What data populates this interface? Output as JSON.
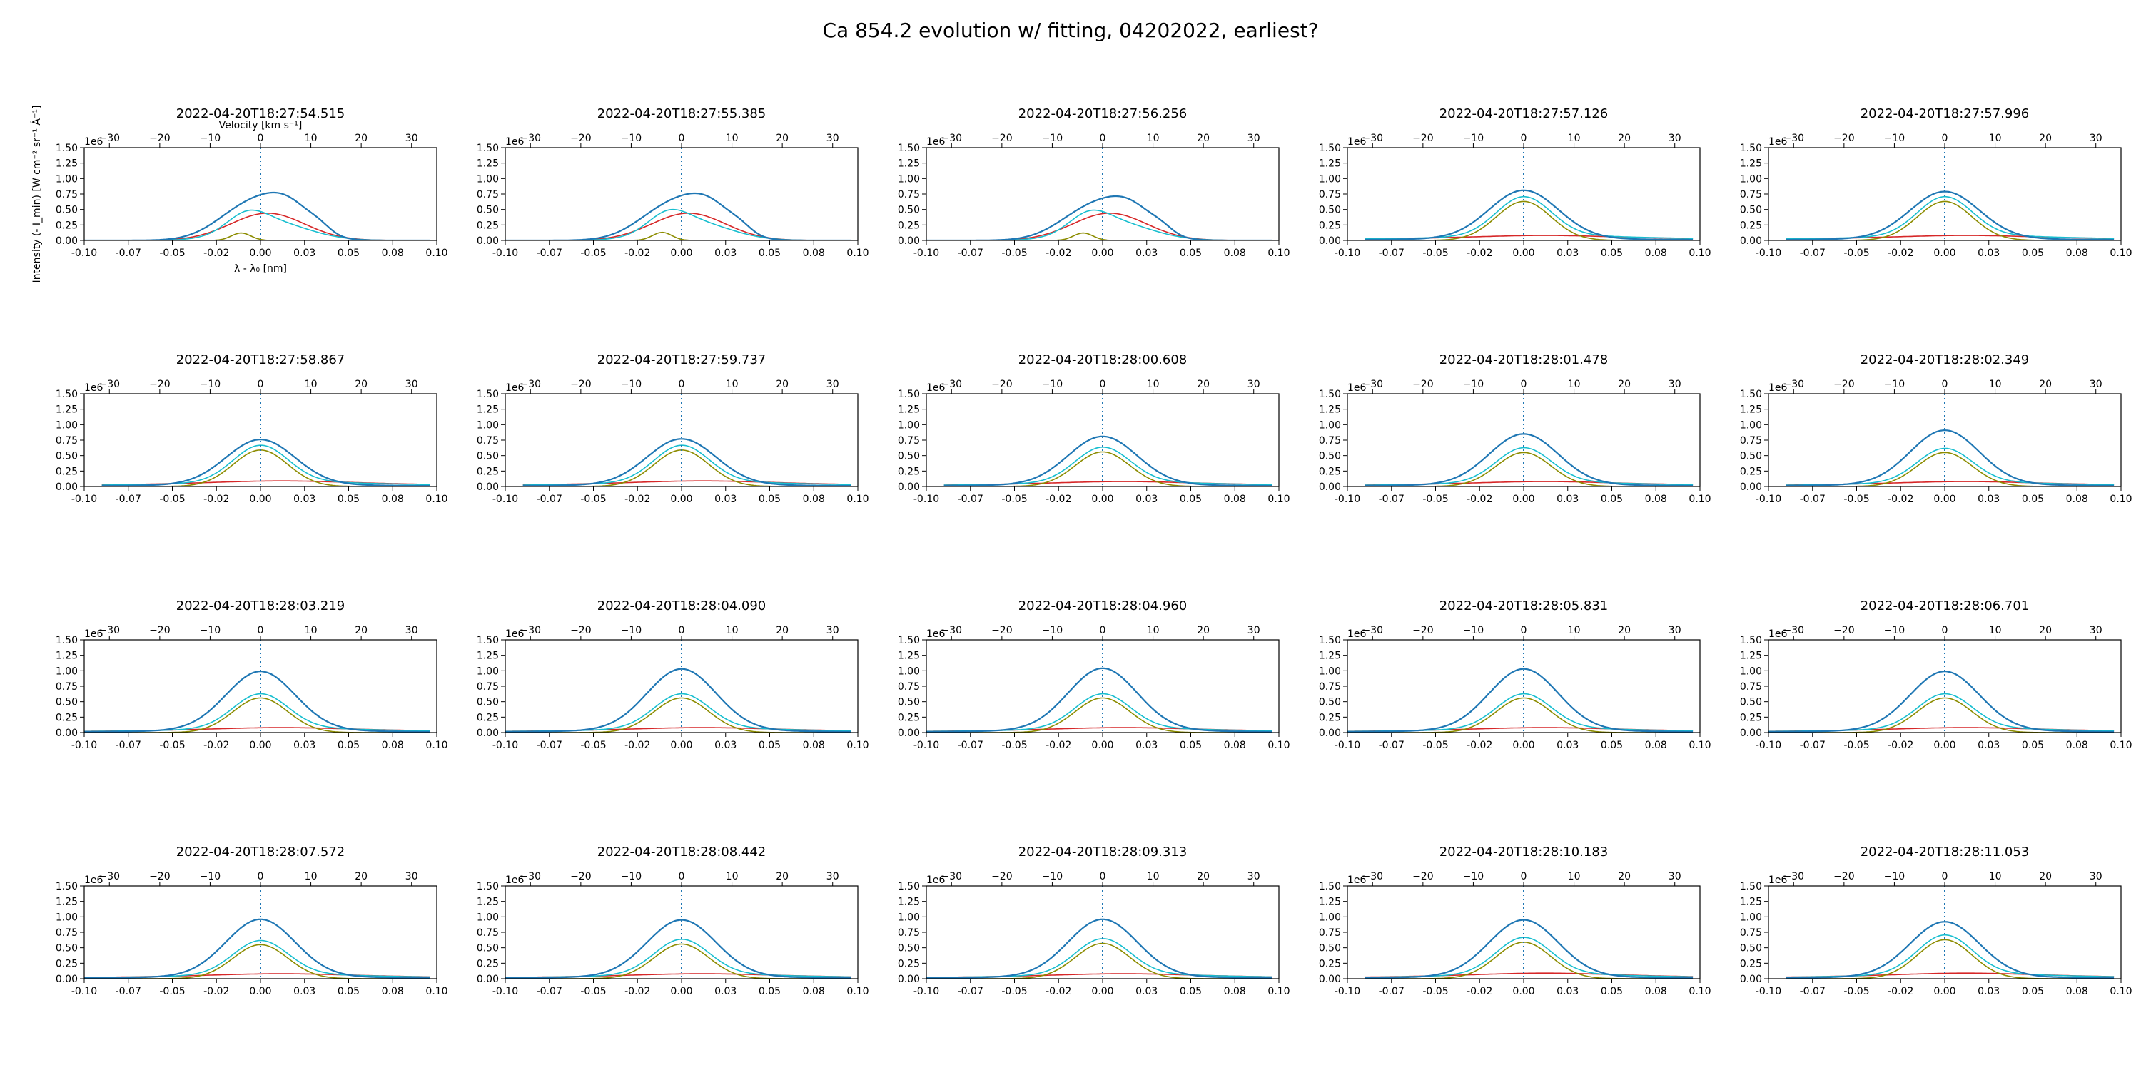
{
  "figure": {
    "suptitle": "Ca 854.2 evolution w/ fitting, 04202022, earliest?"
  },
  "chart_data": {
    "type": "line",
    "grid": false,
    "legend": "none",
    "xlabel": "λ - λ₀ [nm]",
    "ylabel": "Intensity (- I_min) [W cm⁻² sr⁻¹ Å⁻¹]",
    "x2label": "Velocity [km s⁻¹]",
    "xlim": [
      -0.1,
      0.1
    ],
    "ylim": [
      0,
      1.5
    ],
    "y_offset_label": "1e6",
    "velocity_lim": [
      -35,
      35
    ],
    "x_ticks": [
      -0.1,
      -0.075,
      -0.05,
      -0.025,
      0.0,
      0.025,
      0.05,
      0.075,
      0.1
    ],
    "x_tick_labels": [
      "-0.10",
      "-0.07",
      "-0.05",
      "-0.02",
      "0.00",
      "0.03",
      "0.05",
      "0.08",
      "0.10"
    ],
    "y_ticks": [
      0,
      0.25,
      0.5,
      0.75,
      1.0,
      1.25,
      1.5
    ],
    "y_tick_labels": [
      "0.00",
      "0.25",
      "0.50",
      "0.75",
      "1.00",
      "1.25",
      "1.50"
    ],
    "v_ticks": [
      -30,
      -20,
      -10,
      0,
      10,
      20,
      30
    ],
    "v_tick_labels": [
      "−30",
      "−20",
      "−10",
      "0",
      "10",
      "20",
      "30"
    ],
    "series_colors": {
      "observed": "#1f77b4",
      "fit": "#17becf",
      "narrow": "#8c8c00",
      "broad": "#d62728"
    },
    "panels": [
      {
        "title": "2022-04-20T18:27:54.515",
        "kind": "early",
        "obs": 0.67,
        "fit": 0.47,
        "narrow": 0.12,
        "broad": 0.44,
        "x_start": -0.1
      },
      {
        "title": "2022-04-20T18:27:55.385",
        "kind": "early",
        "obs": 0.66,
        "fit": 0.48,
        "narrow": 0.13,
        "broad": 0.44,
        "x_start": -0.1
      },
      {
        "title": "2022-04-20T18:27:56.256",
        "kind": "early",
        "obs": 0.62,
        "fit": 0.47,
        "narrow": 0.12,
        "broad": 0.44,
        "x_start": -0.1
      },
      {
        "title": "2022-04-20T18:27:57.126",
        "kind": "normal",
        "obs": 0.81,
        "fit": 0.71,
        "narrow": 0.63,
        "broad": 0.08,
        "x_start": -0.09
      },
      {
        "title": "2022-04-20T18:27:57.996",
        "kind": "normal",
        "obs": 0.79,
        "fit": 0.71,
        "narrow": 0.63,
        "broad": 0.08,
        "x_start": -0.09
      },
      {
        "title": "2022-04-20T18:27:58.867",
        "kind": "normal",
        "obs": 0.76,
        "fit": 0.67,
        "narrow": 0.59,
        "broad": 0.09,
        "x_start": -0.09
      },
      {
        "title": "2022-04-20T18:27:59.737",
        "kind": "normal",
        "obs": 0.77,
        "fit": 0.67,
        "narrow": 0.59,
        "broad": 0.09,
        "x_start": -0.09
      },
      {
        "title": "2022-04-20T18:28:00.608",
        "kind": "normal",
        "obs": 0.81,
        "fit": 0.64,
        "narrow": 0.56,
        "broad": 0.08,
        "x_start": -0.09
      },
      {
        "title": "2022-04-20T18:28:01.478",
        "kind": "normal",
        "obs": 0.85,
        "fit": 0.63,
        "narrow": 0.55,
        "broad": 0.08,
        "x_start": -0.09
      },
      {
        "title": "2022-04-20T18:28:02.349",
        "kind": "normal",
        "obs": 0.91,
        "fit": 0.62,
        "narrow": 0.55,
        "broad": 0.08,
        "x_start": -0.09
      },
      {
        "title": "2022-04-20T18:28:03.219",
        "kind": "normal",
        "obs": 0.99,
        "fit": 0.63,
        "narrow": 0.56,
        "broad": 0.08,
        "x_start": -0.1
      },
      {
        "title": "2022-04-20T18:28:04.090",
        "kind": "normal",
        "obs": 1.03,
        "fit": 0.63,
        "narrow": 0.56,
        "broad": 0.08,
        "x_start": -0.1
      },
      {
        "title": "2022-04-20T18:28:04.960",
        "kind": "normal",
        "obs": 1.04,
        "fit": 0.63,
        "narrow": 0.56,
        "broad": 0.08,
        "x_start": -0.1
      },
      {
        "title": "2022-04-20T18:28:05.831",
        "kind": "normal",
        "obs": 1.03,
        "fit": 0.63,
        "narrow": 0.56,
        "broad": 0.08,
        "x_start": -0.1
      },
      {
        "title": "2022-04-20T18:28:06.701",
        "kind": "normal",
        "obs": 0.99,
        "fit": 0.63,
        "narrow": 0.56,
        "broad": 0.08,
        "x_start": -0.1
      },
      {
        "title": "2022-04-20T18:28:07.572",
        "kind": "normal",
        "obs": 0.96,
        "fit": 0.62,
        "narrow": 0.55,
        "broad": 0.08,
        "x_start": -0.1
      },
      {
        "title": "2022-04-20T18:28:08.442",
        "kind": "normal",
        "obs": 0.95,
        "fit": 0.64,
        "narrow": 0.56,
        "broad": 0.08,
        "x_start": -0.1
      },
      {
        "title": "2022-04-20T18:28:09.313",
        "kind": "normal",
        "obs": 0.96,
        "fit": 0.65,
        "narrow": 0.57,
        "broad": 0.08,
        "x_start": -0.1
      },
      {
        "title": "2022-04-20T18:28:10.183",
        "kind": "normal",
        "obs": 0.95,
        "fit": 0.67,
        "narrow": 0.59,
        "broad": 0.09,
        "x_start": -0.09
      },
      {
        "title": "2022-04-20T18:28:11.053",
        "kind": "normal",
        "obs": 0.92,
        "fit": 0.71,
        "narrow": 0.63,
        "broad": 0.09,
        "x_start": -0.09
      }
    ]
  }
}
